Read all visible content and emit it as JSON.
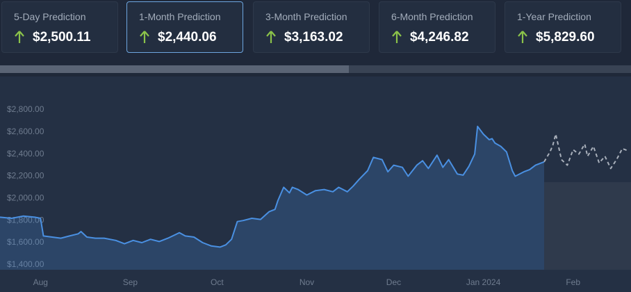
{
  "cards": [
    {
      "label": "5-Day Prediction",
      "value": "$2,500.11"
    },
    {
      "label": "1-Month Prediction",
      "value": "$2,440.06"
    },
    {
      "label": "3-Month Prediction",
      "value": "$3,163.02"
    },
    {
      "label": "6-Month Prediction",
      "value": "$4,246.82"
    },
    {
      "label": "1-Year Prediction",
      "value": "$5,829.60"
    }
  ],
  "selected_card": 1,
  "chart_data": {
    "type": "line",
    "xlim": [
      0,
      218
    ],
    "xticks": [
      {
        "value": 14,
        "label": "Aug"
      },
      {
        "value": 45,
        "label": "Sep"
      },
      {
        "value": 75,
        "label": "Oct"
      },
      {
        "value": 106,
        "label": "Nov"
      },
      {
        "value": 136,
        "label": "Dec"
      },
      {
        "value": 167,
        "label": "Jan 2024"
      },
      {
        "value": 198,
        "label": "Feb"
      }
    ],
    "ylim": [
      1355,
      2850
    ],
    "yticks": [
      {
        "value": 1400,
        "label": "$1,400.00"
      },
      {
        "value": 1600,
        "label": "$1,600.00"
      },
      {
        "value": 1800,
        "label": "$1,800.00"
      },
      {
        "value": 2000,
        "label": "$2,000.00"
      },
      {
        "value": 2200,
        "label": "$2,200.00"
      },
      {
        "value": 2400,
        "label": "$2,400.00"
      },
      {
        "value": 2600,
        "label": "$2,600.00"
      },
      {
        "value": 2800,
        "label": "$2,800.00"
      }
    ],
    "series": [
      {
        "color": "#4a90e2",
        "style": "solid",
        "area": true,
        "x": [
          0,
          4,
          8,
          12,
          14,
          15,
          18,
          21,
          24,
          27,
          28,
          30,
          33,
          36,
          40,
          43,
          46,
          49,
          52,
          55,
          58,
          62,
          64,
          67,
          70,
          73,
          76,
          78,
          80,
          82,
          84,
          87,
          90,
          93,
          95,
          96,
          98,
          100,
          101,
          103,
          106,
          109,
          112,
          115,
          117,
          120,
          122,
          124,
          127,
          129,
          132,
          134,
          136,
          139,
          141,
          144,
          146,
          148,
          151,
          153,
          155,
          158,
          160,
          162,
          164,
          165,
          167,
          169,
          170,
          171,
          173,
          175,
          177,
          178,
          181,
          183,
          185,
          188
        ],
        "values": [
          1830,
          1820,
          1840,
          1830,
          1820,
          1660,
          1650,
          1640,
          1660,
          1680,
          1700,
          1650,
          1640,
          1640,
          1620,
          1590,
          1620,
          1600,
          1630,
          1610,
          1640,
          1690,
          1660,
          1650,
          1600,
          1570,
          1560,
          1580,
          1630,
          1790,
          1800,
          1820,
          1810,
          1880,
          1900,
          1980,
          2100,
          2050,
          2100,
          2080,
          2030,
          2070,
          2080,
          2060,
          2100,
          2060,
          2110,
          2170,
          2250,
          2370,
          2350,
          2240,
          2300,
          2280,
          2200,
          2300,
          2340,
          2270,
          2390,
          2280,
          2350,
          2220,
          2210,
          2290,
          2400,
          2650,
          2580,
          2530,
          2540,
          2500,
          2470,
          2420,
          2250,
          2200,
          2240,
          2260,
          2300,
          2330
        ]
      },
      {
        "color": "#a9b0bb",
        "style": "dashed",
        "area": false,
        "x": [
          188,
          190,
          191,
          192,
          194,
          196,
          198,
          200,
          202,
          203,
          205,
          207,
          209,
          211,
          213,
          215,
          217
        ],
        "values": [
          2330,
          2420,
          2480,
          2580,
          2350,
          2300,
          2440,
          2400,
          2490,
          2380,
          2470,
          2320,
          2380,
          2270,
          2350,
          2450,
          2430
        ]
      }
    ]
  }
}
